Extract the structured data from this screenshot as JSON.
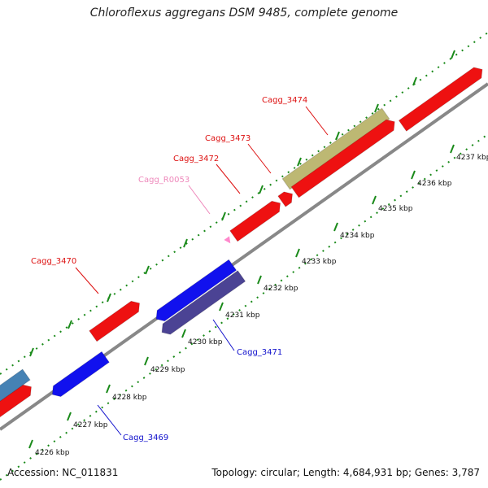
{
  "title": "Chloroflexus aggregans DSM 9485, complete genome",
  "accession": "Accession: NC_011831",
  "summary": "Topology: circular; Length: 4,684,931 bp; Genes: 3,787",
  "colors": {
    "forward_gene": "#ee1111",
    "reverse_gene": "#1111ee",
    "rna": "#ff88cc",
    "other_a": "#bdb873",
    "other_b": "#4b4394",
    "other_c": "#4682b4",
    "backbone": "#888888",
    "tick": "#1a8a1a",
    "red_label": "#dd1111",
    "blue_label": "#1111cc",
    "pink_label": "#ee88bb"
  },
  "ticks": [
    {
      "label": "4226 kbp"
    },
    {
      "label": "4227 kbp"
    },
    {
      "label": "4228 kbp"
    },
    {
      "label": "4229 kbp"
    },
    {
      "label": "4230 kbp"
    },
    {
      "label": "4231 kbp"
    },
    {
      "label": "4232 kbp"
    },
    {
      "label": "4233 kbp"
    },
    {
      "label": "4234 kbp"
    },
    {
      "label": "4235 kbp"
    },
    {
      "label": "4236 kbp"
    },
    {
      "label": "4237 kbp"
    }
  ],
  "labels": [
    {
      "text": "Cagg_3474"
    },
    {
      "text": "Cagg_3473"
    },
    {
      "text": "Cagg_3472"
    },
    {
      "text": "Cagg_R0053"
    },
    {
      "text": "Cagg_3470"
    },
    {
      "text": "Cagg_3471"
    },
    {
      "text": "Cagg_3469"
    }
  ]
}
